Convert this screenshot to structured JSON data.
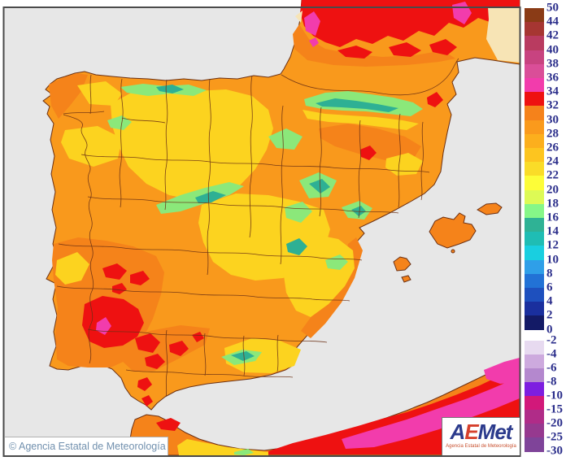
{
  "legend": {
    "upper_labels": [
      "50",
      "44",
      "42",
      "40",
      "38",
      "36",
      "34",
      "32",
      "30",
      "28",
      "26",
      "24",
      "22",
      "20",
      "18",
      "16",
      "14",
      "12",
      "10",
      "8",
      "6",
      "4",
      "2",
      "0"
    ],
    "upper_colors": [
      "#8A3B16",
      "#A63632",
      "#B93B60",
      "#C84380",
      "#DA4E98",
      "#F23CAC",
      "#EE1111",
      "#F5821B",
      "#FA9A1C",
      "#FCAF1D",
      "#FDC51F",
      "#FADC28",
      "#FDFD38",
      "#DDFA55",
      "#86F788",
      "#2FB295",
      "#1FBDB4",
      "#19CFE0",
      "#2F9FE8",
      "#2272D6",
      "#1E50BE",
      "#1A2F9E",
      "#131A66"
    ],
    "lower_labels": [
      "-2",
      "-4",
      "-6",
      "-8",
      "-10",
      "-15",
      "-20",
      "-25",
      "-30"
    ],
    "lower_colors": [
      "#E7DAF0",
      "#CDAADE",
      "#B488CE",
      "#7D1EE0",
      "#D2187A",
      "#B02C88",
      "#96398F",
      "#7F4499"
    ],
    "label_color": "#2B2E8B"
  },
  "footer": {
    "copyright": "© Agencia Estatal de Meteorología"
  },
  "logo": {
    "letters": [
      {
        "ch": "A",
        "color": "#2B3A8C"
      },
      {
        "ch": "E",
        "color": "#D6402C"
      },
      {
        "ch": "M",
        "color": "#2B3A8C"
      },
      {
        "ch": "e",
        "color": "#2B3A8C"
      },
      {
        "ch": "t",
        "color": "#2B3A8C"
      }
    ],
    "tagline": "Agencia Estatal de Meteorología",
    "tagline_color": "#C8502F"
  },
  "map": {
    "sea_color": "#E7E7E7",
    "land_base": "#F9991C",
    "warm_orange": "#F5831A",
    "hot_red": "#EE1111",
    "hot_magenta": "#F23CAC",
    "mild_yellow": "#FCD31F",
    "cool_green": "#8BE87A",
    "cold_teal": "#2EB094",
    "no_data_color": "#F7E4B5",
    "boundary_line_color": "#6B3014",
    "frame_color": "#4A4A4A"
  }
}
